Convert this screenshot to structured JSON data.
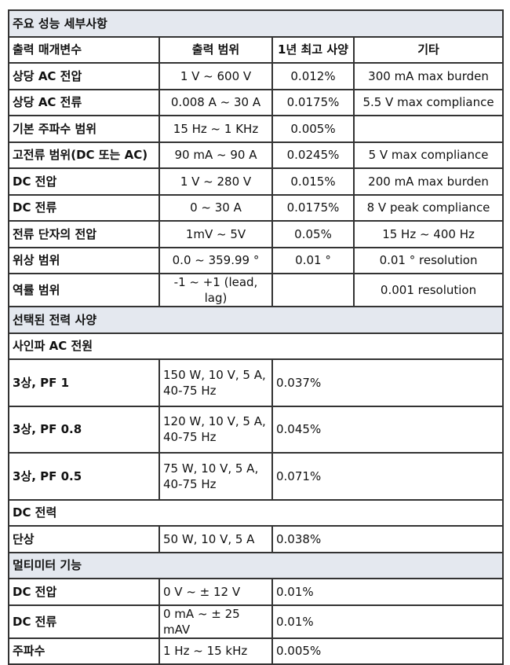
{
  "sections": {
    "performance": "주요 성능 세부사항",
    "power": "선택된 전력 사양",
    "multimeter": "멀티미터 기능"
  },
  "header": {
    "param": "출력 매개변수",
    "range": "출력 범위",
    "spec": "1년 최고 사양",
    "other": "기타"
  },
  "performance_rows": [
    {
      "param": "상당 AC 전압",
      "range": "1 V ~ 600 V",
      "spec": "0.012%",
      "other": "300 mA max burden"
    },
    {
      "param": "상당 AC 전류",
      "range": "0.008 A ~ 30 A",
      "spec": "0.0175%",
      "other": "5.5 V max compliance"
    },
    {
      "param": "기본 주파수 범위",
      "range": "15 Hz ~ 1 KHz",
      "spec": "0.005%",
      "other": ""
    },
    {
      "param": "고전류 범위(DC 또는 AC)",
      "range": "90 mA ~ 90 A",
      "spec": "0.0245%",
      "other": "5 V max compliance"
    },
    {
      "param": "DC 전압",
      "range": "1 V ~ 280 V",
      "spec": "0.015%",
      "other": "200 mA max burden"
    },
    {
      "param": "DC 전류",
      "range": "0 ~ 30 A",
      "spec": "0.0175%",
      "other": "8 V peak compliance"
    },
    {
      "param": "전류 단자의 전압",
      "range": "1mV ~ 5V",
      "spec": "0.05%",
      "other": "15 Hz ~ 400 Hz"
    },
    {
      "param": "위상 범위",
      "range": "0.0 ~ 359.99 °",
      "spec": "0.01 °",
      "other": "0.01 ° resolution"
    },
    {
      "param": "역률 범위",
      "range": "-1 ~ +1 (lead, lag)",
      "spec": "",
      "other": "0.001 resolution"
    }
  ],
  "sine_ac": {
    "title": "사인파 AC 전원",
    "rows": [
      {
        "label": "3상, PF 1",
        "cond1": "150 W, 10 V, 5 A,",
        "cond2": "40-75 Hz",
        "spec": "0.037%"
      },
      {
        "label": "3상, PF 0.8",
        "cond1": "120 W, 10 V, 5 A,",
        "cond2": "40-75 Hz",
        "spec": "0.045%"
      },
      {
        "label": "3상, PF 0.5",
        "cond1": "75 W, 10 V, 5 A,",
        "cond2": "40-75 Hz",
        "spec": "0.071%"
      }
    ]
  },
  "dc_power": {
    "title": "DC 전력",
    "rows": [
      {
        "label": "단상",
        "cond": "50 W, 10 V, 5 A",
        "spec": "0.038%"
      }
    ]
  },
  "multimeter_rows": [
    {
      "label": "DC 전압",
      "range": "0 V ~ ± 12 V",
      "spec": "0.01%"
    },
    {
      "label": "DC 전류",
      "range": "0 mA ~ ± 25 mAV",
      "spec": "0.01%"
    },
    {
      "label": "주파수",
      "range": "1 Hz ~ 15 kHz",
      "spec": "0.005%"
    }
  ]
}
